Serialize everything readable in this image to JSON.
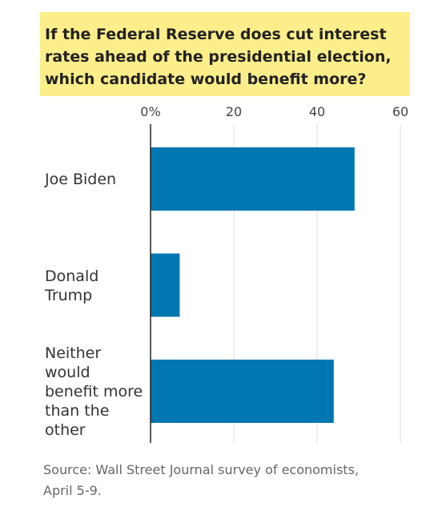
{
  "chart_data": {
    "type": "bar",
    "orientation": "horizontal",
    "title": "If the Federal Reserve does cut interest rates ahead of the presidential election, which candidate would benefit more?",
    "categories": [
      "Joe Biden",
      "Donald\nTrump",
      "Neither\nwould\nbenefit more\nthan the\nother"
    ],
    "values": [
      49,
      7,
      44
    ],
    "color": "#0077b0",
    "xlim": [
      0,
      60
    ],
    "xticks": [
      {
        "value": 0,
        "label": "0%"
      },
      20,
      40,
      60
    ],
    "grid": true,
    "source": "Source: Wall Street Journal survey of economists, April 5-9."
  }
}
